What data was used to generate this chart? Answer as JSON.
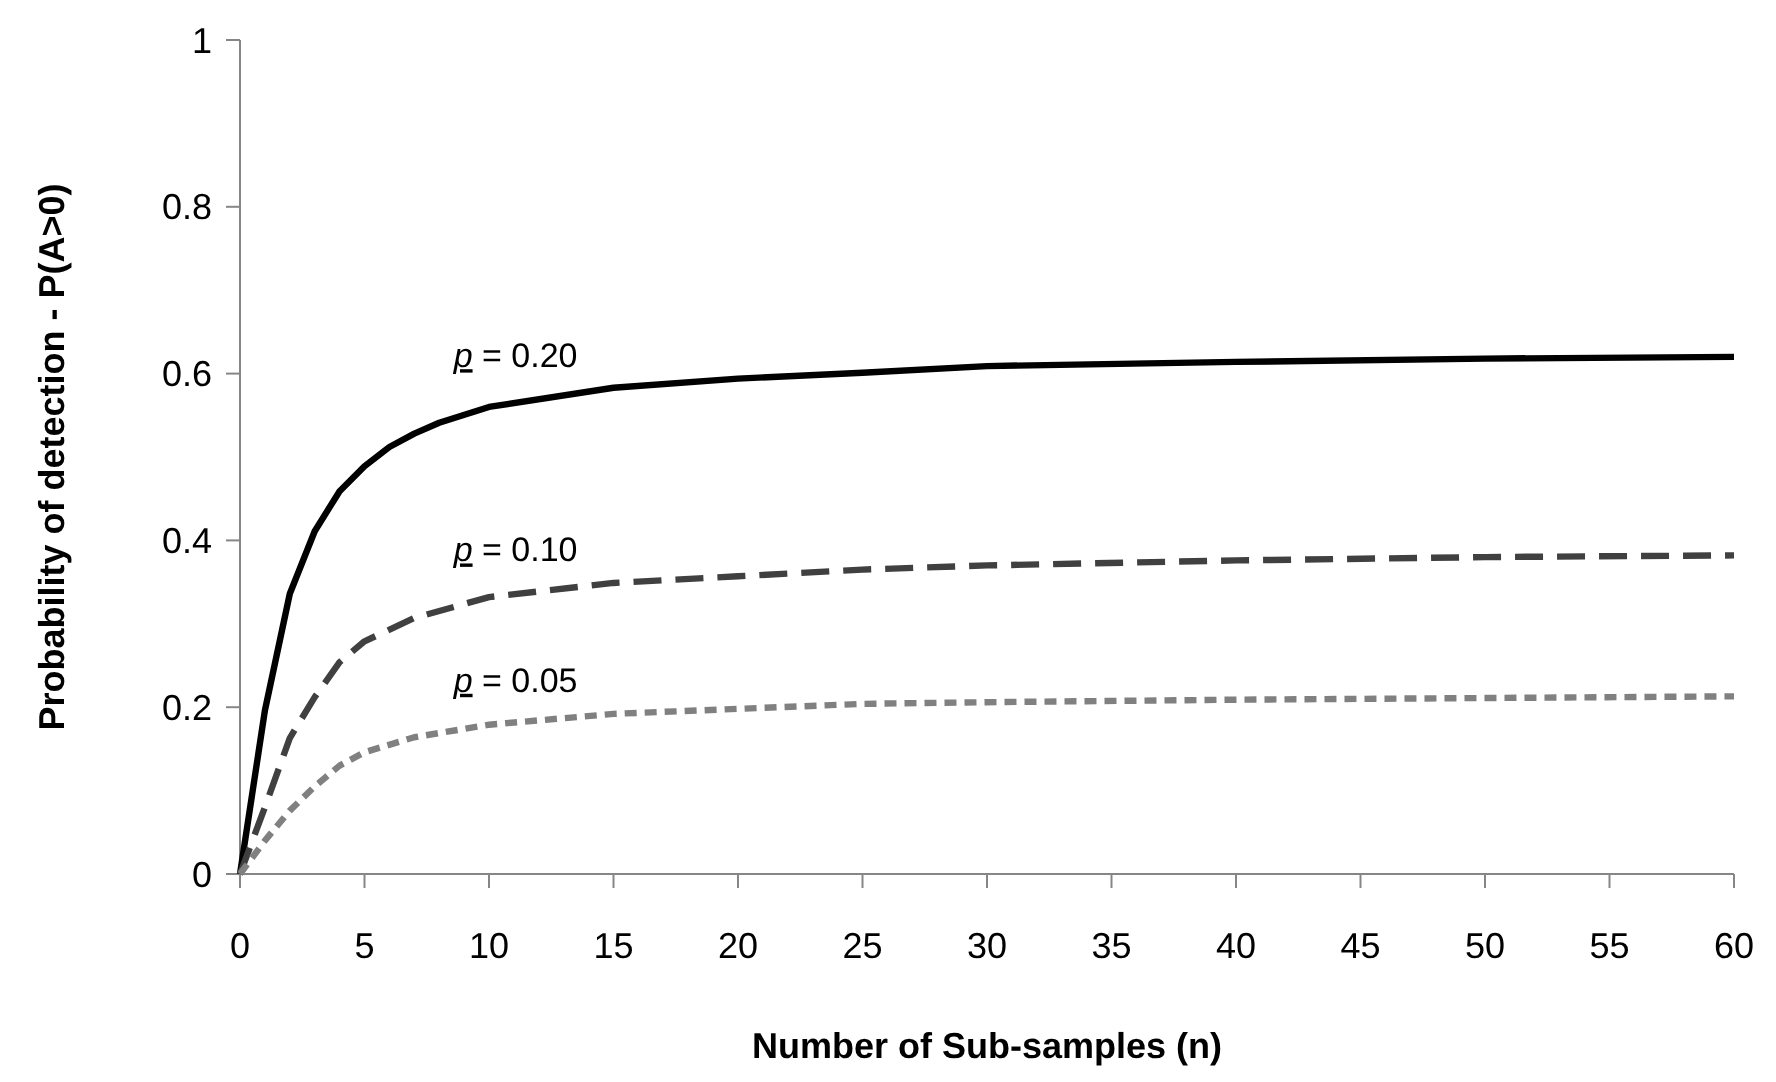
{
  "chart_data": {
    "type": "line",
    "xlabel": "Number of Sub-samples (n)",
    "ylabel": "Probability of detection - P(A>0)",
    "xlim": [
      0,
      60
    ],
    "xticks": [
      0,
      5,
      10,
      15,
      20,
      25,
      30,
      35,
      40,
      45,
      50,
      55,
      60
    ],
    "ylim": [
      0,
      1
    ],
    "yticks": [
      0,
      0.2,
      0.4,
      0.6,
      0.8,
      1
    ],
    "grid": false,
    "series": [
      {
        "name": "p = 0.20",
        "color": "#000000",
        "line_style": "solid",
        "x": [
          0,
          1,
          2,
          3,
          4,
          5,
          6,
          7,
          8,
          10,
          15,
          20,
          25,
          30,
          40,
          50,
          60
        ],
        "values": [
          0,
          0.196,
          0.336,
          0.411,
          0.459,
          0.489,
          0.512,
          0.528,
          0.541,
          0.56,
          0.583,
          0.594,
          0.601,
          0.609,
          0.614,
          0.618,
          0.62
        ]
      },
      {
        "name": "p = 0.10",
        "color": "#404040",
        "line_style": "dashed",
        "x": [
          0,
          1,
          2,
          3,
          4,
          5,
          7,
          10,
          15,
          20,
          25,
          30,
          40,
          50,
          60
        ],
        "values": [
          0,
          0.08,
          0.163,
          0.212,
          0.254,
          0.279,
          0.307,
          0.332,
          0.349,
          0.357,
          0.365,
          0.37,
          0.376,
          0.38,
          0.382
        ]
      },
      {
        "name": "p = 0.05",
        "color": "#808080",
        "line_style": "dotted",
        "x": [
          0,
          1,
          2,
          3,
          4,
          5,
          7,
          10,
          15,
          20,
          25,
          30,
          40,
          50,
          60
        ],
        "values": [
          0,
          0.04,
          0.076,
          0.105,
          0.13,
          0.146,
          0.164,
          0.179,
          0.192,
          0.198,
          0.204,
          0.206,
          0.209,
          0.211,
          0.213
        ]
      }
    ]
  }
}
